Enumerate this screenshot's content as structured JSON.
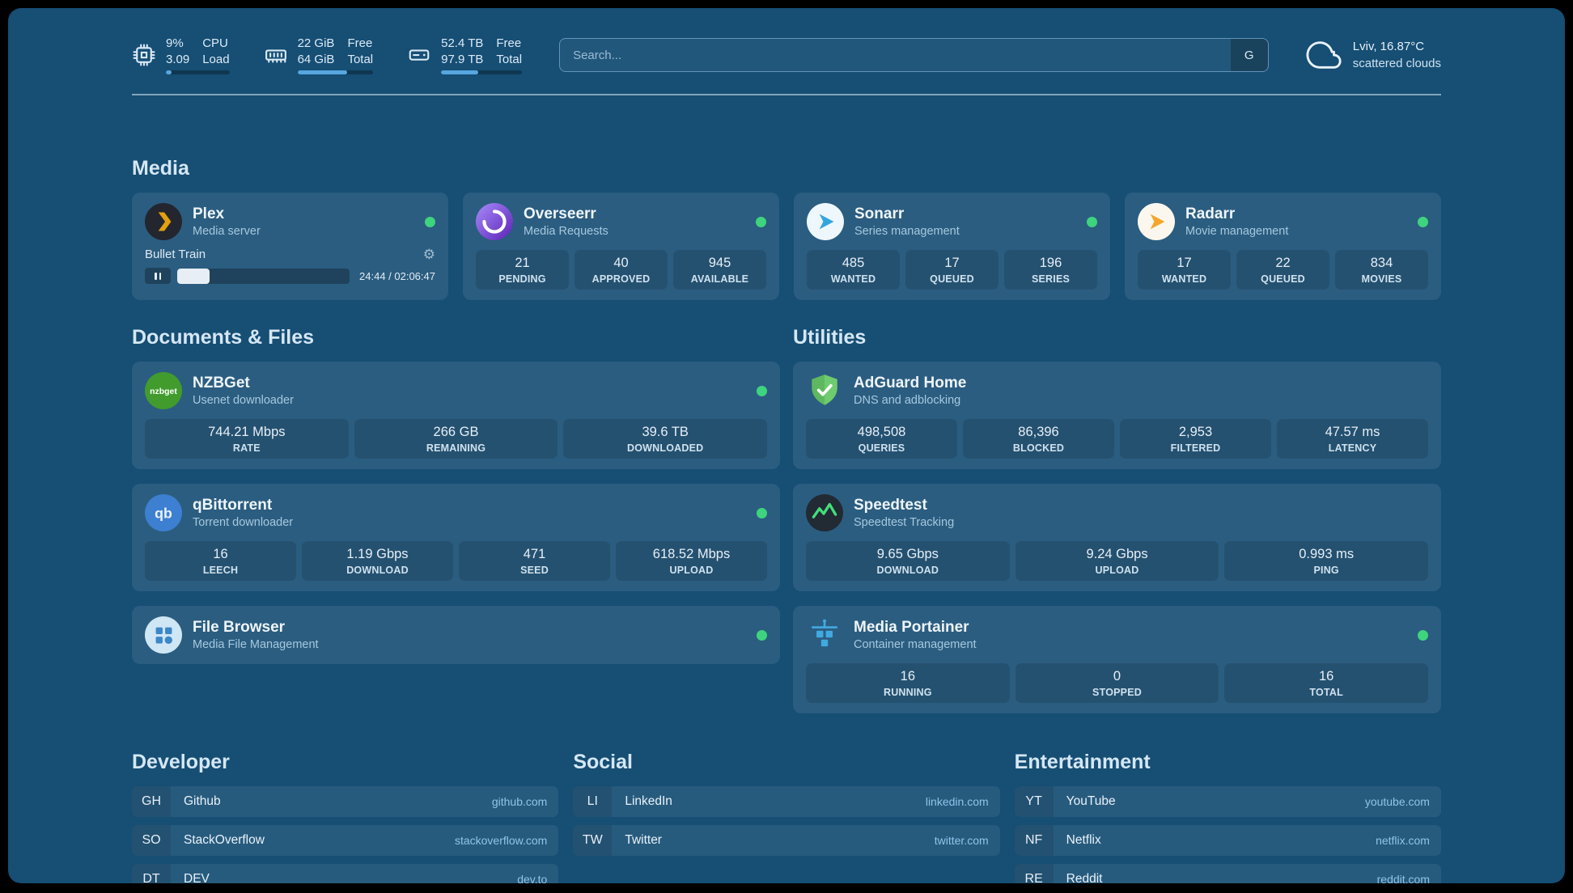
{
  "colors": {
    "background": "#164e74",
    "card": "#2c6287",
    "accent": "#57a7e0",
    "status_online": "#3ed47d",
    "plex_gold": "#e5a00d",
    "link": "#8fc3e8"
  },
  "icons": {
    "gear": "⚙"
  },
  "header": {
    "resources": [
      {
        "name": "cpu",
        "value1": "9%",
        "value2": "3.09",
        "label1": "CPU",
        "label2": "Load",
        "percent": 9
      },
      {
        "name": "memory",
        "value1": "22 GiB",
        "value2": "64 GiB",
        "label1": "Free",
        "label2": "Total",
        "percent": 66
      },
      {
        "name": "disk",
        "value1": "52.4 TB",
        "value2": "97.9 TB",
        "label1": "Free",
        "label2": "Total",
        "percent": 46
      }
    ],
    "search": {
      "placeholder": "Search...",
      "button_label": "G"
    },
    "weather": {
      "location": "Lviv, 16.87°C",
      "condition": "scattered clouds"
    }
  },
  "media": {
    "title": "Media",
    "plex": {
      "name": "Plex",
      "desc": "Media server",
      "now_playing": "Bullet Train",
      "time": "24:44 / 02:06:47",
      "progress_percent": 19
    },
    "overseerr": {
      "name": "Overseerr",
      "desc": "Media Requests",
      "stats": [
        {
          "value": "21",
          "label": "PENDING"
        },
        {
          "value": "40",
          "label": "APPROVED"
        },
        {
          "value": "945",
          "label": "AVAILABLE"
        }
      ]
    },
    "sonarr": {
      "name": "Sonarr",
      "desc": "Series management",
      "stats": [
        {
          "value": "485",
          "label": "WANTED"
        },
        {
          "value": "17",
          "label": "QUEUED"
        },
        {
          "value": "196",
          "label": "SERIES"
        }
      ]
    },
    "radarr": {
      "name": "Radarr",
      "desc": "Movie management",
      "stats": [
        {
          "value": "17",
          "label": "WANTED"
        },
        {
          "value": "22",
          "label": "QUEUED"
        },
        {
          "value": "834",
          "label": "MOVIES"
        }
      ]
    }
  },
  "documents": {
    "title": "Documents & Files",
    "nzbget": {
      "name": "NZBGet",
      "desc": "Usenet downloader",
      "stats": [
        {
          "value": "744.21 Mbps",
          "label": "RATE"
        },
        {
          "value": "266 GB",
          "label": "REMAINING"
        },
        {
          "value": "39.6 TB",
          "label": "DOWNLOADED"
        }
      ]
    },
    "qbittorrent": {
      "name": "qBittorrent",
      "desc": "Torrent downloader",
      "stats": [
        {
          "value": "16",
          "label": "LEECH"
        },
        {
          "value": "1.19 Gbps",
          "label": "DOWNLOAD"
        },
        {
          "value": "471",
          "label": "SEED"
        },
        {
          "value": "618.52 Mbps",
          "label": "UPLOAD"
        }
      ]
    },
    "filebrowser": {
      "name": "File Browser",
      "desc": "Media File Management"
    }
  },
  "utilities": {
    "title": "Utilities",
    "adguard": {
      "name": "AdGuard Home",
      "desc": "DNS and adblocking",
      "stats": [
        {
          "value": "498,508",
          "label": "QUERIES"
        },
        {
          "value": "86,396",
          "label": "BLOCKED"
        },
        {
          "value": "2,953",
          "label": "FILTERED"
        },
        {
          "value": "47.57 ms",
          "label": "LATENCY"
        }
      ]
    },
    "speedtest": {
      "name": "Speedtest",
      "desc": "Speedtest Tracking",
      "stats": [
        {
          "value": "9.65 Gbps",
          "label": "DOWNLOAD"
        },
        {
          "value": "9.24 Gbps",
          "label": "UPLOAD"
        },
        {
          "value": "0.993 ms",
          "label": "PING"
        }
      ]
    },
    "portainer": {
      "name": "Media Portainer",
      "desc": "Container management",
      "stats": [
        {
          "value": "16",
          "label": "RUNNING"
        },
        {
          "value": "0",
          "label": "STOPPED"
        },
        {
          "value": "16",
          "label": "TOTAL"
        }
      ]
    }
  },
  "bookmarks": {
    "groups": [
      {
        "title": "Developer",
        "items": [
          {
            "abbr": "GH",
            "name": "Github",
            "url": "github.com"
          },
          {
            "abbr": "SO",
            "name": "StackOverflow",
            "url": "stackoverflow.com"
          },
          {
            "abbr": "DT",
            "name": "DEV",
            "url": "dev.to"
          }
        ]
      },
      {
        "title": "Social",
        "items": [
          {
            "abbr": "LI",
            "name": "LinkedIn",
            "url": "linkedin.com"
          },
          {
            "abbr": "TW",
            "name": "Twitter",
            "url": "twitter.com"
          }
        ]
      },
      {
        "title": "Entertainment",
        "items": [
          {
            "abbr": "YT",
            "name": "YouTube",
            "url": "youtube.com"
          },
          {
            "abbr": "NF",
            "name": "Netflix",
            "url": "netflix.com"
          },
          {
            "abbr": "RE",
            "name": "Reddit",
            "url": "reddit.com"
          }
        ]
      }
    ]
  }
}
